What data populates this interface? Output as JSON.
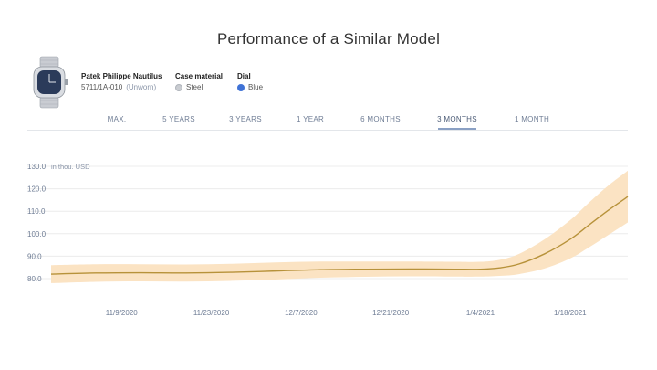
{
  "page": {
    "title": "Performance of a Similar Model"
  },
  "product": {
    "name": "Patek Philippe Nautilus",
    "reference": "5711/1A-010",
    "condition": "(Unworn)",
    "case_material_label": "Case material",
    "case_material_value": "Steel",
    "case_material_color": "#c9ccd1",
    "dial_label": "Dial",
    "dial_value": "Blue",
    "dial_color": "#3f72d6"
  },
  "tabs": [
    {
      "label": "MAX.",
      "active": false
    },
    {
      "label": "5 YEARS",
      "active": false
    },
    {
      "label": "3 YEARS",
      "active": false
    },
    {
      "label": "1 YEAR",
      "active": false
    },
    {
      "label": "6 MONTHS",
      "active": false
    },
    {
      "label": "3 MONTHS",
      "active": true
    },
    {
      "label": "1 MONTH",
      "active": false
    }
  ],
  "colors": {
    "line": "#b7923a",
    "band": "#fbe3c3",
    "grid": "#ececec",
    "accent": "#8aa0c4"
  },
  "chart_data": {
    "type": "line",
    "unit_label": "in thou. USD",
    "ylim": [
      75,
      130
    ],
    "yticks": [
      80.0,
      90.0,
      100.0,
      110.0,
      120.0,
      130.0
    ],
    "xlim": [
      "2020-10-29",
      "2021-01-27"
    ],
    "xticks": [
      "11/9/2020",
      "11/23/2020",
      "12/7/2020",
      "12/21/2020",
      "1/4/2021",
      "1/18/2021"
    ],
    "series": [
      {
        "x": [
          "2020-10-29",
          "2020-11-05",
          "2020-11-12",
          "2020-11-19",
          "2020-11-26",
          "2020-12-03",
          "2020-12-10",
          "2020-12-17",
          "2020-12-24",
          "2020-12-31",
          "2021-01-04",
          "2021-01-07",
          "2021-01-10",
          "2021-01-14",
          "2021-01-18",
          "2021-01-21",
          "2021-01-24",
          "2021-01-27"
        ],
        "y": [
          82.0,
          82.5,
          82.6,
          82.5,
          82.8,
          83.4,
          84.0,
          84.2,
          84.3,
          84.2,
          84.2,
          84.8,
          86.5,
          91.0,
          97.5,
          104.0,
          110.5,
          116.5
        ],
        "lower": [
          78.0,
          78.6,
          78.8,
          78.7,
          79.0,
          79.6,
          80.4,
          80.8,
          81.0,
          80.9,
          80.9,
          81.2,
          82.0,
          84.5,
          89.0,
          94.0,
          99.5,
          105.0
        ],
        "upper": [
          86.0,
          86.4,
          86.4,
          86.3,
          86.6,
          87.2,
          87.6,
          87.6,
          87.6,
          87.5,
          87.5,
          88.4,
          91.0,
          97.5,
          106.0,
          114.0,
          121.5,
          128.0
        ]
      }
    ],
    "grid": true,
    "legend": "none"
  }
}
